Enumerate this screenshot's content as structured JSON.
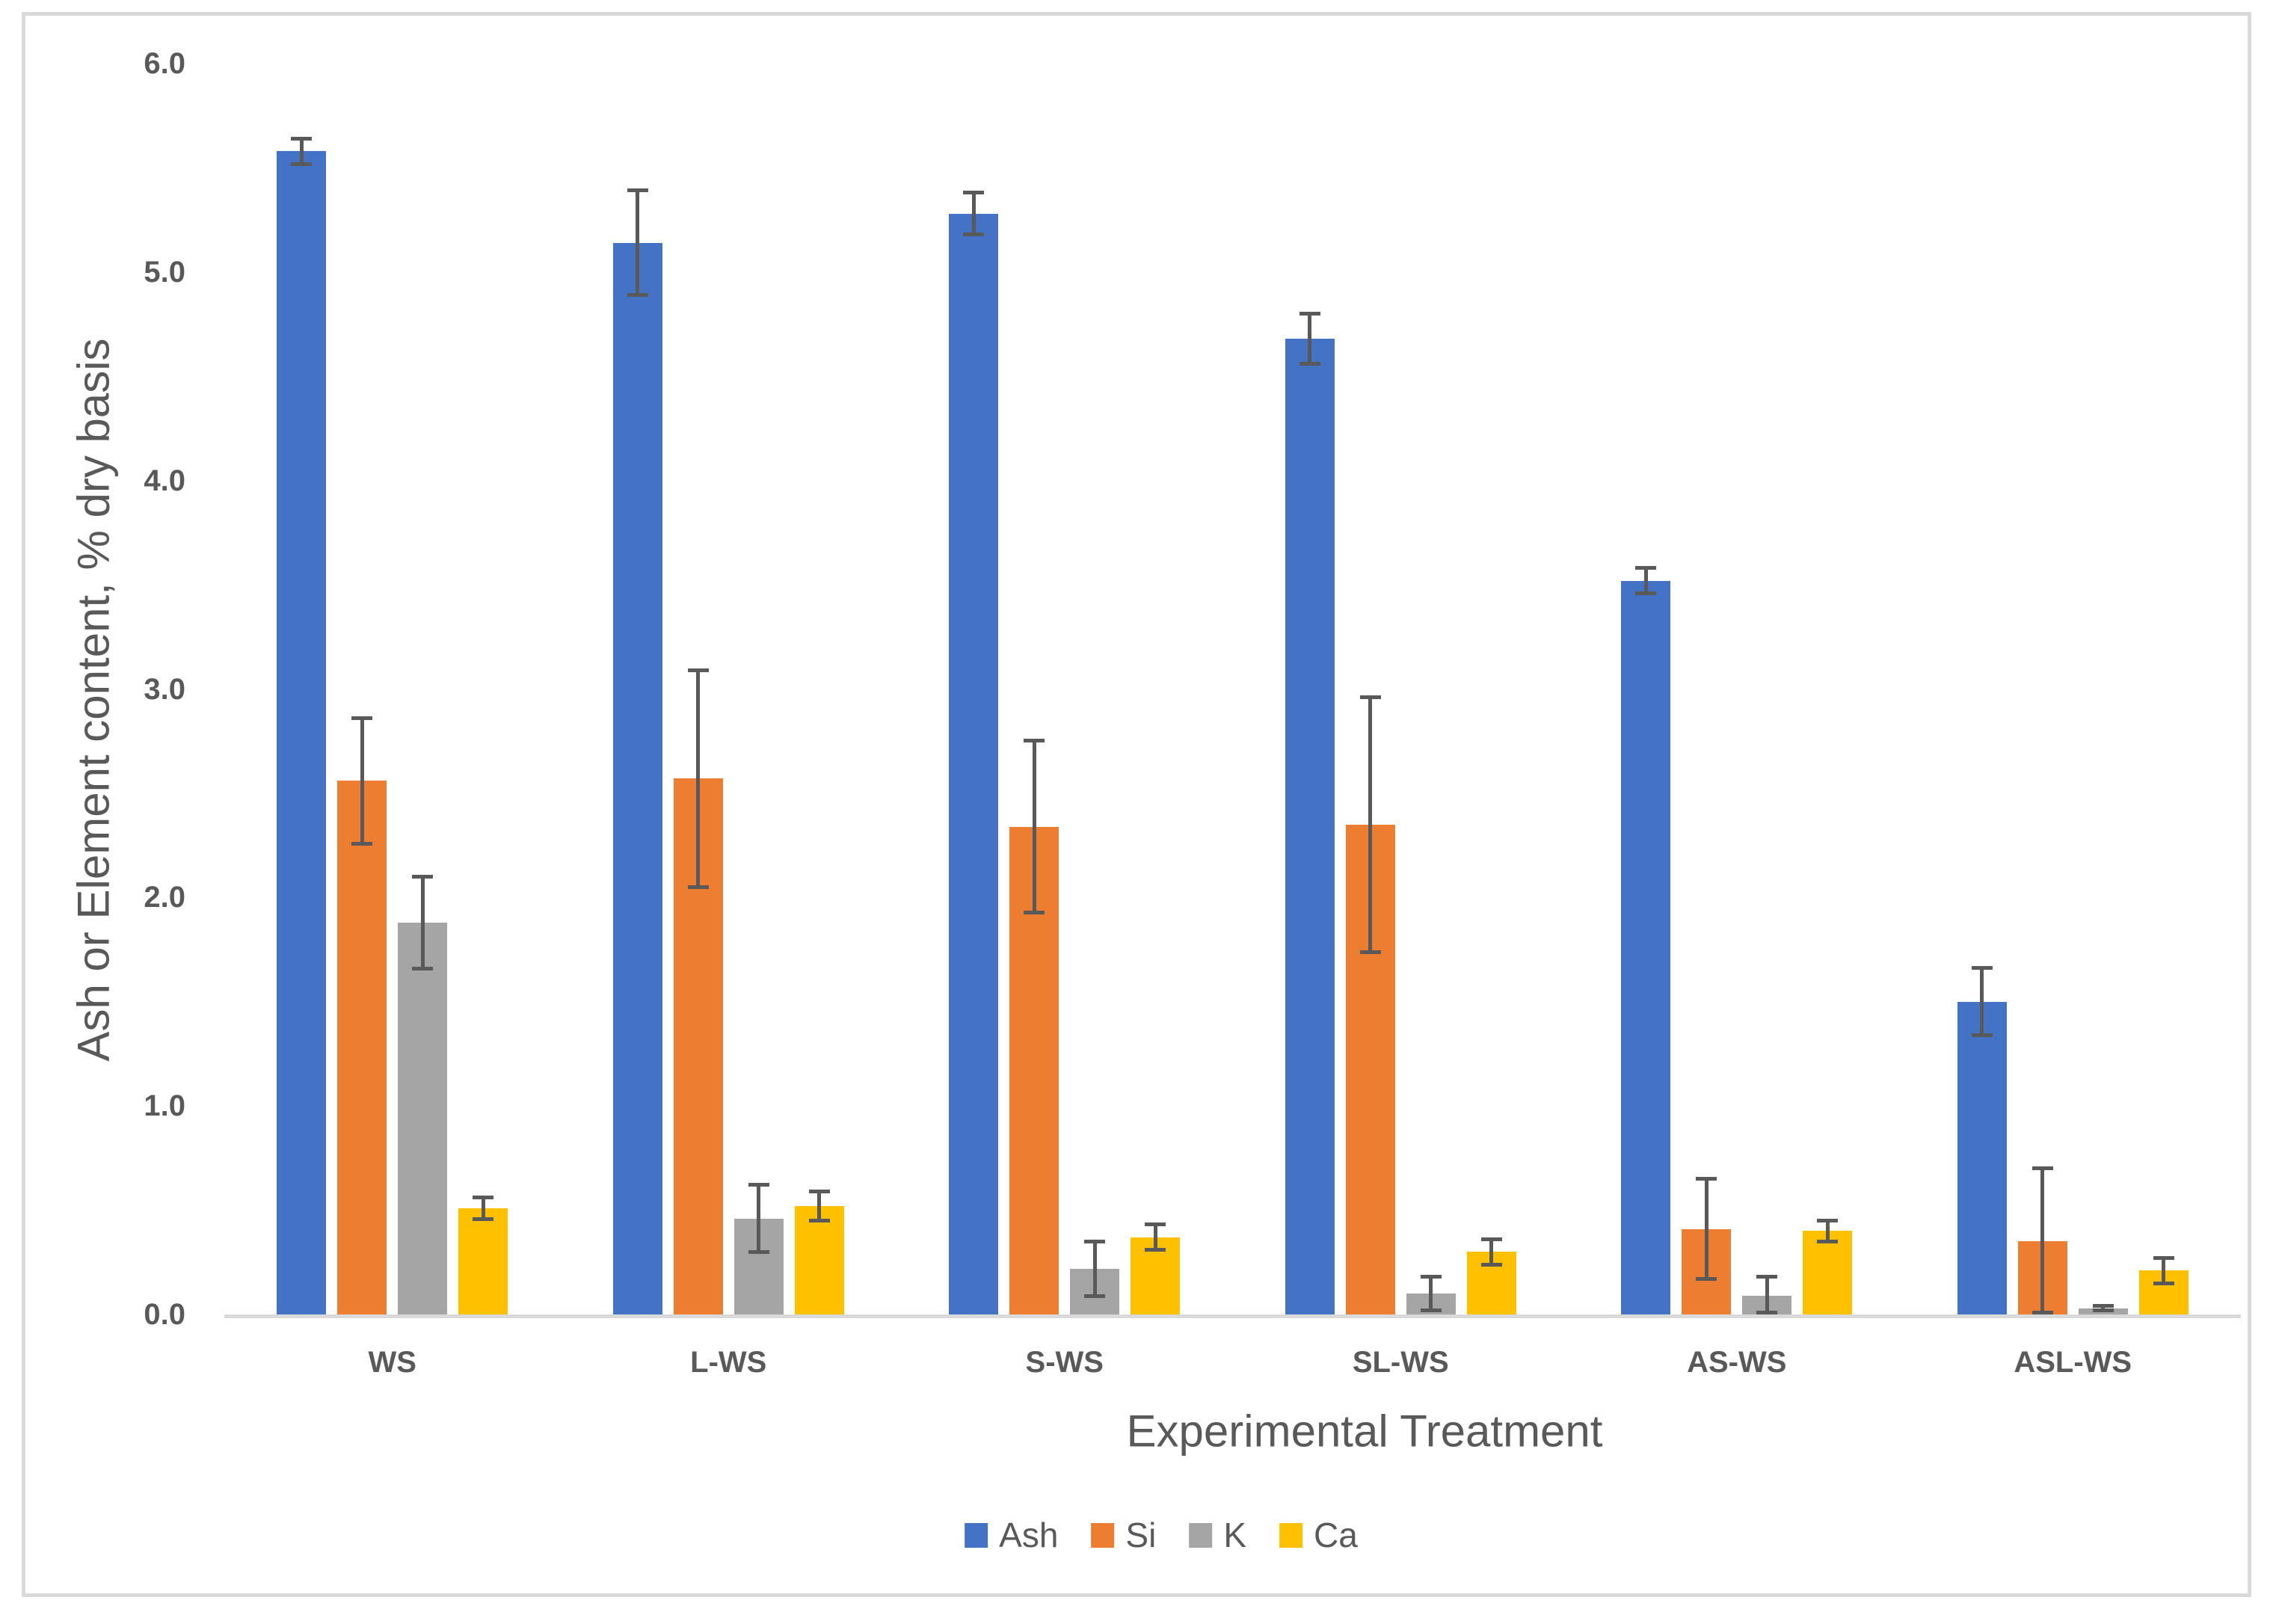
{
  "chart": {
    "background_color": "#FFFFFF",
    "frame_border_color": "#D9D9D9",
    "axis_line_color": "#D9D9D9",
    "text_color": "#595959",
    "error_bar_color": "#595959"
  },
  "chart_data": {
    "type": "bar",
    "title": "",
    "xlabel": "Experimental Treatment",
    "ylabel": "Ash or Element content, % dry basis",
    "categories": [
      "WS",
      "L-WS",
      "S-WS",
      "SL-WS",
      "AS-WS",
      "ASL-WS"
    ],
    "series": [
      {
        "name": "Ash",
        "color": "#4472C4",
        "values": [
          5.58,
          5.14,
          5.28,
          4.68,
          3.52,
          1.5
        ],
        "errors": [
          0.07,
          0.26,
          0.11,
          0.13,
          0.07,
          0.17
        ]
      },
      {
        "name": "Si",
        "color": "#ED7D31",
        "values": [
          2.56,
          2.57,
          2.34,
          2.35,
          0.41,
          0.35
        ],
        "errors": [
          0.31,
          0.53,
          0.42,
          0.62,
          0.25,
          0.36
        ]
      },
      {
        "name": "K",
        "color": "#A5A5A5",
        "values": [
          1.88,
          0.46,
          0.22,
          0.1,
          0.09,
          0.03
        ],
        "errors": [
          0.23,
          0.17,
          0.14,
          0.09,
          0.1,
          0.02
        ]
      },
      {
        "name": "Ca",
        "color": "#FFC000",
        "values": [
          0.51,
          0.52,
          0.37,
          0.3,
          0.4,
          0.21
        ],
        "errors": [
          0.06,
          0.08,
          0.07,
          0.07,
          0.06,
          0.07
        ]
      }
    ],
    "ylim": [
      0,
      6
    ],
    "yticks": [
      {
        "label": "0.0",
        "value": 0
      },
      {
        "label": "1.0",
        "value": 1
      },
      {
        "label": "2.0",
        "value": 2
      },
      {
        "label": "3.0",
        "value": 3
      },
      {
        "label": "4.0",
        "value": 4
      },
      {
        "label": "5.0",
        "value": 5
      },
      {
        "label": "6.0",
        "value": 6
      }
    ],
    "grid": false,
    "legend_position": "bottom",
    "error_bars": true
  }
}
